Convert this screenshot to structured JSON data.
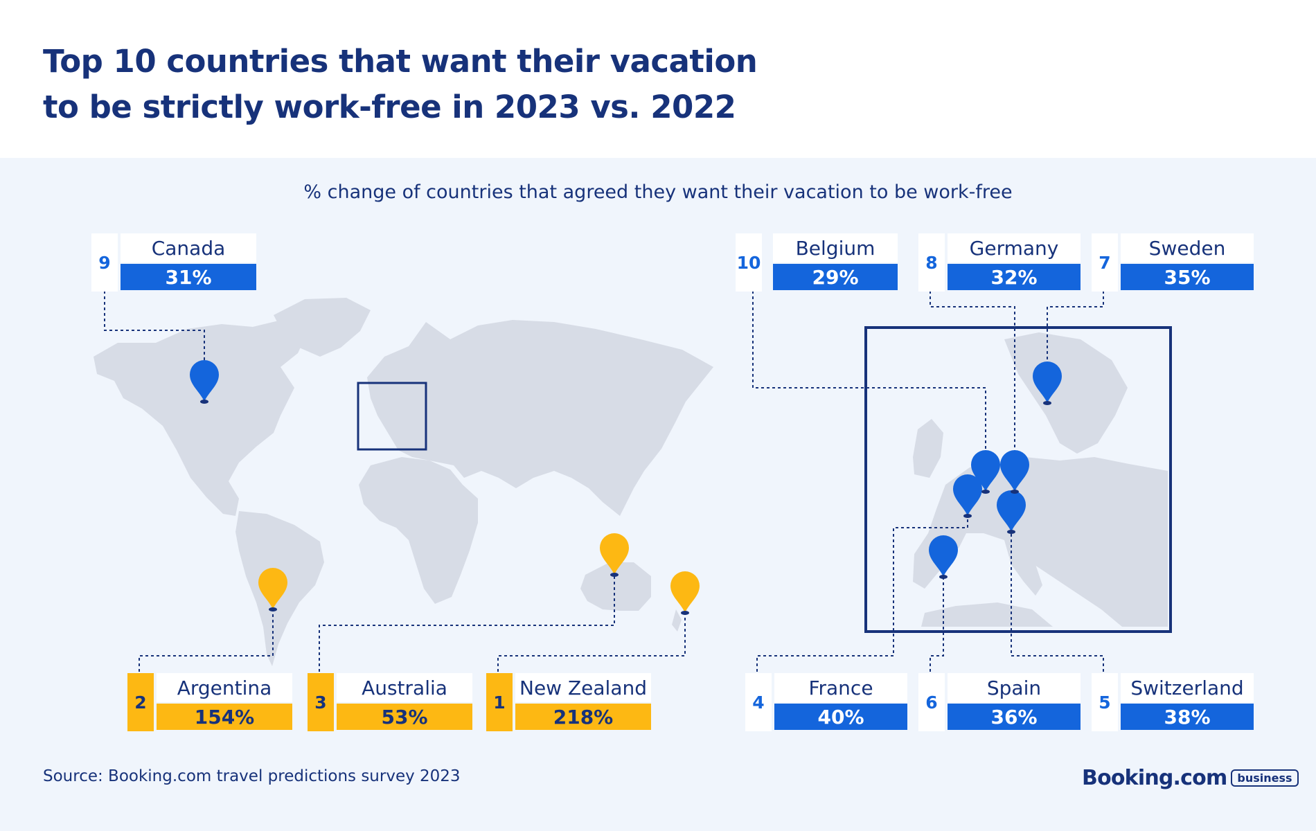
{
  "title_line1": "Top 10 countries that want their vacation",
  "title_line2": "to be strictly work-free in 2023 vs. 2022",
  "subtitle": "% change of countries that agreed they want their vacation to be work-free",
  "source": "Source: Booking.com travel predictions survey 2023",
  "brand": {
    "name": "Booking.com",
    "badge": "business"
  },
  "colors": {
    "title": "#17327a",
    "blue": "#1465dc",
    "gold": "#fdb813",
    "background": "#f0f5fc",
    "land": "#d7dce6"
  },
  "icons": {
    "map_pin": "map-pin-icon"
  },
  "chart_data": {
    "type": "map",
    "title": "Top 10 countries that want their vacation to be strictly work-free in 2023 vs. 2022",
    "subtitle": "% change of countries that agreed they want their vacation to be work-free",
    "unit": "%",
    "series": [
      {
        "rank": 1,
        "country": "New Zealand",
        "label": "218%",
        "value": 218,
        "color": "#fdb813"
      },
      {
        "rank": 2,
        "country": "Argentina",
        "label": "154%",
        "value": 154,
        "color": "#fdb813"
      },
      {
        "rank": 3,
        "country": "Australia",
        "label": "53%",
        "value": 53,
        "color": "#fdb813"
      },
      {
        "rank": 4,
        "country": "France",
        "label": "40%",
        "value": 40,
        "color": "#1465dc"
      },
      {
        "rank": 5,
        "country": "Switzerland",
        "label": "38%",
        "value": 38,
        "color": "#1465dc"
      },
      {
        "rank": 6,
        "country": "Spain",
        "label": "36%",
        "value": 36,
        "color": "#1465dc"
      },
      {
        "rank": 7,
        "country": "Sweden",
        "label": "35%",
        "value": 35,
        "color": "#1465dc"
      },
      {
        "rank": 8,
        "country": "Germany",
        "label": "32%",
        "value": 32,
        "color": "#1465dc"
      },
      {
        "rank": 9,
        "country": "Canada",
        "label": "31%",
        "value": 31,
        "color": "#1465dc"
      },
      {
        "rank": 10,
        "country": "Belgium",
        "label": "29%",
        "value": 29,
        "color": "#1465dc"
      }
    ]
  }
}
